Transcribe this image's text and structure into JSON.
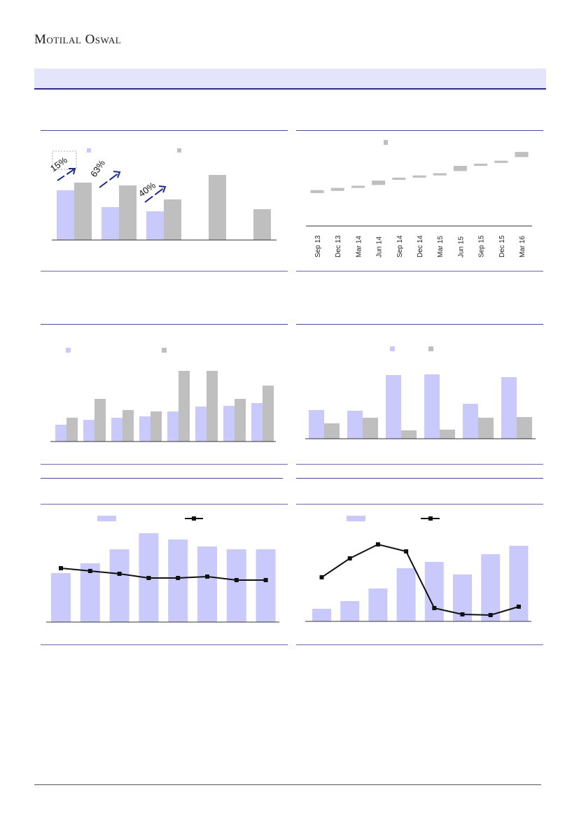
{
  "header": {
    "logo_text": "Motilal Oswal"
  },
  "colors": {
    "light_bar": "#c9c9fb",
    "grey_bar": "#bfbfbf",
    "line": "#111111",
    "rule": "#4a4a9a",
    "banner": "#e4e4fb",
    "arrow": "#1f2a8c"
  },
  "chart_data": [
    {
      "type": "bar",
      "series": [
        {
          "values": [
            71,
            47,
            41,
            null,
            null
          ]
        },
        {
          "values": [
            82,
            78,
            58,
            93,
            44
          ]
        }
      ],
      "annotations": [
        "15%",
        "63%",
        "40%"
      ]
    },
    {
      "type": "bar",
      "categories": [
        "Sep 13",
        "Dec 13",
        "Mar 14",
        "Jun 14",
        "Sep 14",
        "Dec 14",
        "Mar 15",
        "Jun 15",
        "Sep 15",
        "Dec 15",
        "Mar 16"
      ],
      "series": [
        {
          "low": [
            22,
            25,
            29,
            33,
            40,
            43,
            46,
            52,
            59,
            63,
            71
          ],
          "high": [
            26,
            29,
            32,
            39,
            43,
            46,
            49,
            59,
            62,
            66,
            78
          ]
        }
      ]
    },
    {
      "type": "bar",
      "series": [
        {
          "values": [
            24,
            31,
            34,
            36,
            43,
            50,
            51,
            55
          ]
        },
        {
          "values": [
            34,
            61,
            45,
            43,
            101,
            101,
            61,
            80
          ]
        }
      ]
    },
    {
      "type": "bar",
      "series": [
        {
          "values": [
            41,
            40,
            91,
            92,
            50,
            88
          ]
        },
        {
          "values": [
            22,
            30,
            12,
            13,
            30,
            31
          ]
        }
      ]
    },
    {
      "type": "bar",
      "series": [
        {
          "values": [
            70,
            84,
            104,
            127,
            118,
            108,
            104,
            104
          ]
        },
        {
          "values": [
            77,
            73,
            69,
            63,
            63,
            65,
            60,
            60
          ]
        }
      ]
    },
    {
      "type": "bar",
      "series": [
        {
          "values": [
            18,
            29,
            47,
            76,
            85,
            67,
            96,
            108
          ]
        },
        {
          "values": [
            63,
            90,
            110,
            100,
            19,
            10,
            9,
            21
          ]
        }
      ]
    }
  ]
}
